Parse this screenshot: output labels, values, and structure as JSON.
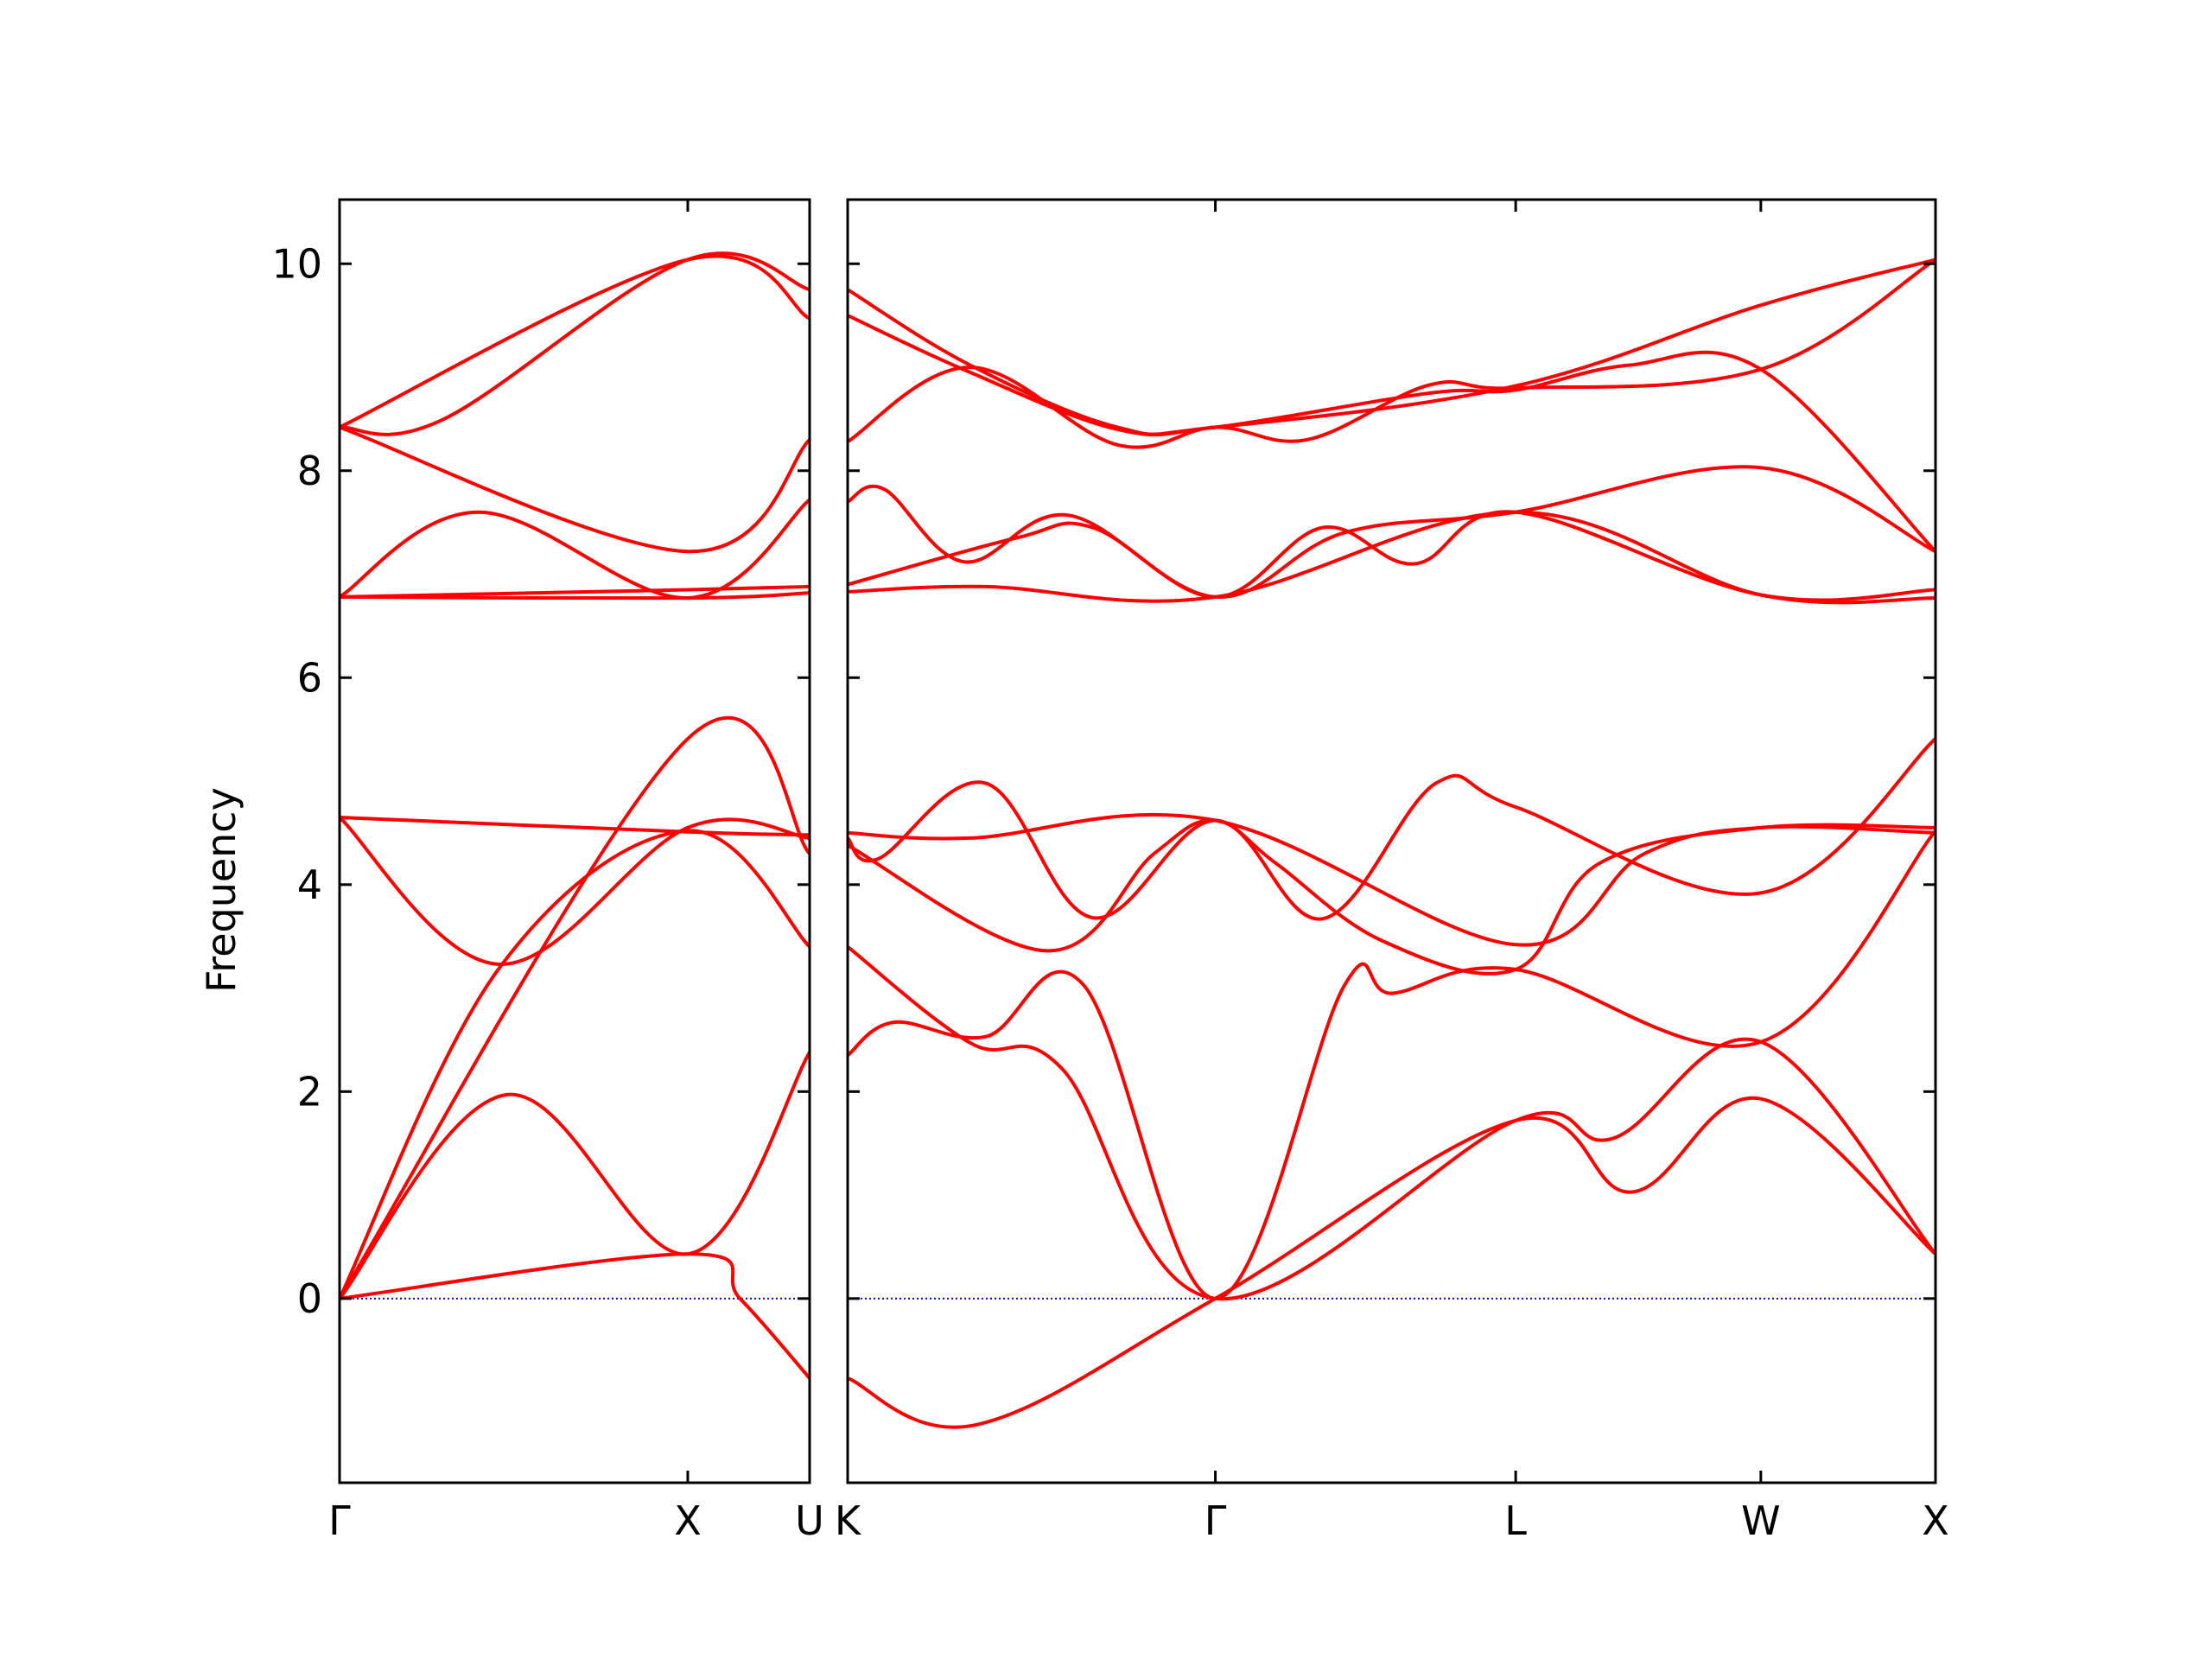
{
  "chart_data": {
    "type": "line",
    "title": "",
    "ylabel": "Frequency",
    "ylim": [
      -1.78,
      10.62
    ],
    "yticks": [
      0,
      2,
      4,
      6,
      8,
      10
    ],
    "ytick_labels": [
      "0",
      "2",
      "4",
      "6",
      "8",
      "10"
    ],
    "grid": false,
    "colors": {
      "bands": "#ff0000",
      "zero_line": "#0000ff",
      "axes": "#000000"
    },
    "panels": [
      {
        "id": "left",
        "x_range": [
          0,
          1.35
        ],
        "ticks": [
          {
            "x": 0,
            "label": "Γ"
          },
          {
            "x": 1.0,
            "label": "X"
          },
          {
            "x": 1.35,
            "label": "U"
          }
        ],
        "series": [
          {
            "values": [
              [
                0,
                0
              ],
              [
                0.48,
                1.97
              ],
              [
                1.0,
                0.43
              ],
              [
                1.35,
                2.38
              ]
            ]
          },
          {
            "values": [
              [
                0,
                0
              ],
              [
                0.46,
                3.2
              ],
              [
                1.0,
                4.52
              ],
              [
                1.35,
                3.4
              ]
            ]
          },
          {
            "values": [
              [
                0,
                0
              ],
              [
                1.0,
                5.41
              ],
              [
                1.35,
                4.3
              ]
            ]
          },
          {
            "values": [
              [
                0,
                4.65
              ],
              [
                0.46,
                3.23
              ],
              [
                1.0,
                4.55
              ],
              [
                1.35,
                4.45
              ]
            ]
          },
          {
            "values": [
              [
                0,
                4.65
              ],
              [
                1.0,
                4.51
              ],
              [
                1.35,
                4.48
              ]
            ]
          },
          {
            "values": [
              [
                0,
                0
              ],
              [
                1.0,
                0.43
              ],
              [
                1.15,
                0.0
              ],
              [
                1.35,
                -0.77
              ]
            ]
          },
          {
            "values": [
              [
                0,
                6.78
              ],
              [
                0.4,
                7.6
              ],
              [
                1.0,
                6.77
              ],
              [
                1.35,
                7.72
              ]
            ]
          },
          {
            "values": [
              [
                0,
                6.78
              ],
              [
                1.0,
                6.85
              ],
              [
                1.35,
                6.88
              ]
            ]
          },
          {
            "values": [
              [
                0,
                8.42
              ],
              [
                1.0,
                7.22
              ],
              [
                1.35,
                8.3
              ]
            ]
          },
          {
            "values": [
              [
                0,
                8.42
              ],
              [
                0.3,
                8.5
              ],
              [
                1.0,
                10.04
              ],
              [
                1.35,
                9.75
              ]
            ]
          },
          {
            "values": [
              [
                0,
                8.42
              ],
              [
                1.0,
                10.04
              ],
              [
                1.35,
                9.47
              ]
            ]
          },
          {
            "values": [
              [
                0,
                6.78
              ],
              [
                1.0,
                6.77
              ],
              [
                1.35,
                6.82
              ]
            ]
          }
        ]
      },
      {
        "id": "right",
        "x_range": [
          0,
          3.55
        ],
        "ticks": [
          {
            "x": 0,
            "label": "K"
          },
          {
            "x": 1.2,
            "label": "Γ"
          },
          {
            "x": 2.18,
            "label": "L"
          },
          {
            "x": 2.98,
            "label": "W"
          },
          {
            "x": 3.55,
            "label": "X"
          }
        ],
        "series": [
          {
            "values": [
              [
                0,
                -0.77
              ],
              [
                0.42,
                -1.22
              ],
              [
                1.2,
                0.0
              ],
              [
                2.18,
                1.72
              ],
              [
                2.56,
                1.03
              ],
              [
                2.98,
                1.93
              ],
              [
                3.55,
                0.43
              ]
            ]
          },
          {
            "values": [
              [
                0,
                2.35
              ],
              [
                0.15,
                2.67
              ],
              [
                0.45,
                2.53
              ],
              [
                0.77,
                3.03
              ],
              [
                1.2,
                0.0
              ],
              [
                1.62,
                3.02
              ],
              [
                1.78,
                2.95
              ],
              [
                2.18,
                3.18
              ],
              [
                2.98,
                2.48
              ],
              [
                3.55,
                4.52
              ]
            ]
          },
          {
            "values": [
              [
                0,
                3.4
              ],
              [
                0.4,
                2.47
              ],
              [
                0.7,
                2.22
              ],
              [
                1.2,
                0.0
              ],
              [
                2.18,
                1.72
              ],
              [
                2.5,
                1.55
              ],
              [
                2.98,
                2.48
              ],
              [
                3.55,
                0.43
              ]
            ]
          },
          {
            "values": [
              [
                0,
                4.45
              ],
              [
                0.1,
                4.25
              ],
              [
                0.45,
                4.98
              ],
              [
                0.8,
                3.68
              ],
              [
                1.2,
                4.62
              ],
              [
                1.55,
                3.67
              ],
              [
                1.92,
                4.98
              ],
              [
                2.18,
                4.75
              ],
              [
                2.98,
                3.92
              ],
              [
                3.55,
                5.41
              ]
            ]
          },
          {
            "values": [
              [
                0,
                4.38
              ],
              [
                0.65,
                3.36
              ],
              [
                1.0,
                4.3
              ],
              [
                1.2,
                4.62
              ],
              [
                1.4,
                4.2
              ],
              [
                1.75,
                3.45
              ],
              [
                2.18,
                3.18
              ],
              [
                2.45,
                4.2
              ],
              [
                2.98,
                4.55
              ],
              [
                3.55,
                4.55
              ]
            ]
          },
          {
            "values": [
              [
                0,
                4.5
              ],
              [
                0.4,
                4.45
              ],
              [
                1.2,
                4.62
              ],
              [
                2.18,
                3.42
              ],
              [
                2.6,
                4.3
              ],
              [
                2.98,
                4.55
              ],
              [
                3.55,
                4.5
              ]
            ]
          },
          {
            "values": [
              [
                0,
                6.83
              ],
              [
                0.45,
                6.88
              ],
              [
                1.2,
                6.78
              ],
              [
                2.18,
                7.6
              ],
              [
                2.98,
                6.8
              ],
              [
                3.55,
                6.77
              ]
            ]
          },
          {
            "values": [
              [
                0,
                6.9
              ],
              [
                0.55,
                7.35
              ],
              [
                0.8,
                7.45
              ],
              [
                1.2,
                6.78
              ],
              [
                1.55,
                7.45
              ],
              [
                1.85,
                7.1
              ],
              [
                2.18,
                7.6
              ],
              [
                2.98,
                6.8
              ],
              [
                3.55,
                6.85
              ]
            ]
          },
          {
            "values": [
              [
                0,
                7.7
              ],
              [
                0.12,
                7.82
              ],
              [
                0.38,
                7.12
              ],
              [
                0.72,
                7.57
              ],
              [
                1.2,
                6.78
              ],
              [
                1.62,
                7.4
              ],
              [
                2.18,
                7.6
              ],
              [
                2.98,
                8.03
              ],
              [
                3.55,
                7.22
              ]
            ]
          },
          {
            "values": [
              [
                0,
                8.28
              ],
              [
                0.4,
                9.0
              ],
              [
                0.88,
                8.25
              ],
              [
                1.2,
                8.42
              ],
              [
                1.5,
                8.3
              ],
              [
                1.9,
                8.83
              ],
              [
                2.18,
                8.8
              ],
              [
                2.98,
                8.98
              ],
              [
                3.55,
                10.04
              ]
            ]
          },
          {
            "values": [
              [
                0,
                9.5
              ],
              [
                0.4,
                8.95
              ],
              [
                0.88,
                8.4
              ],
              [
                1.2,
                8.42
              ],
              [
                1.9,
                8.75
              ],
              [
                2.18,
                8.78
              ],
              [
                2.55,
                9.02
              ],
              [
                2.98,
                8.98
              ],
              [
                3.55,
                7.22
              ]
            ]
          },
          {
            "values": [
              [
                0,
                9.75
              ],
              [
                0.4,
                9.02
              ],
              [
                0.88,
                8.42
              ],
              [
                1.2,
                8.42
              ],
              [
                2.18,
                8.82
              ],
              [
                2.98,
                9.6
              ],
              [
                3.55,
                10.04
              ]
            ]
          }
        ]
      }
    ]
  }
}
